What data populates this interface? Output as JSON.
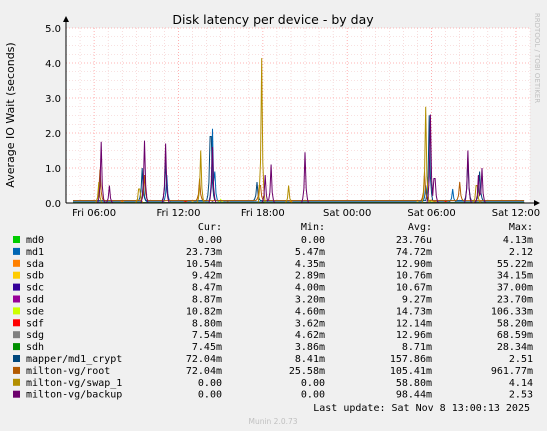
{
  "chart_data": {
    "type": "line",
    "title": "Disk latency per device - by day",
    "ylabel": "Average IO Wait (seconds)",
    "watermark": "RRDTOOL / TOBI OETIKER",
    "footer": "Munin 2.0.73",
    "last_update": "Last update: Sat Nov  8 13:00:13 2025",
    "ylim": [
      0,
      5
    ],
    "yticks": [
      {
        "value": 0,
        "label": "0.0"
      },
      {
        "value": 1,
        "label": "1.0"
      },
      {
        "value": 2,
        "label": "2.0"
      },
      {
        "value": 3,
        "label": "3.0"
      },
      {
        "value": 4,
        "label": "4.0"
      },
      {
        "value": 5,
        "label": "5.0"
      }
    ],
    "xlim": [
      "Fri 04:00",
      "Sat 13:00"
    ],
    "xticks": [
      {
        "hour": 6,
        "label": "Fri 06:00"
      },
      {
        "hour": 12,
        "label": "Fri 12:00"
      },
      {
        "hour": 18,
        "label": "Fri 18:00"
      },
      {
        "hour": 24,
        "label": "Sat 00:00"
      },
      {
        "hour": 30,
        "label": "Sat 06:00"
      },
      {
        "hour": 36,
        "label": "Sat 12:00"
      }
    ],
    "grid": true,
    "legend_headers": [
      "Cur:",
      "Min:",
      "Avg:",
      "Max:"
    ],
    "series": [
      {
        "name": "md0",
        "color": "#00cc00",
        "cur": "0.00",
        "min": "0.00",
        "avg": "23.76u",
        "max": "4.13m",
        "baseline": 0.001,
        "spikes": []
      },
      {
        "name": "md1",
        "color": "#0066b3",
        "cur": "23.73m",
        "min": "5.47m",
        "avg": "74.72m",
        "max": "2.12",
        "baseline": 0.03,
        "spikes": [
          [
            9.5,
            0.6
          ],
          [
            11.2,
            0.8
          ],
          [
            14.4,
            2.12
          ],
          [
            14.6,
            0.9
          ],
          [
            29.6,
            0.5
          ],
          [
            31.5,
            0.4
          ]
        ]
      },
      {
        "name": "sda",
        "color": "#ff8000",
        "cur": "10.54m",
        "min": "4.35m",
        "avg": "12.90m",
        "max": "55.22m",
        "baseline": 0.012,
        "spikes": [
          [
            8.0,
            0.05
          ],
          [
            20.0,
            0.055
          ],
          [
            30.2,
            0.05
          ]
        ]
      },
      {
        "name": "sdb",
        "color": "#ffcc00",
        "cur": "9.42m",
        "min": "2.89m",
        "avg": "10.76m",
        "max": "34.15m",
        "baseline": 0.011,
        "spikes": [
          [
            13.0,
            0.034
          ],
          [
            29.0,
            0.03
          ]
        ]
      },
      {
        "name": "sdc",
        "color": "#330099",
        "cur": "8.47m",
        "min": "4.00m",
        "avg": "10.67m",
        "max": "37.00m",
        "baseline": 0.011,
        "spikes": [
          [
            14.4,
            0.037
          ],
          [
            33.0,
            0.03
          ]
        ]
      },
      {
        "name": "sdd",
        "color": "#990099",
        "cur": "8.87m",
        "min": "3.20m",
        "avg": "9.27m",
        "max": "23.70m",
        "baseline": 0.009,
        "spikes": [
          [
            11.0,
            0.024
          ]
        ]
      },
      {
        "name": "sde",
        "color": "#ccff00",
        "cur": "10.82m",
        "min": "4.60m",
        "avg": "14.73m",
        "max": "106.33m",
        "baseline": 0.014,
        "spikes": [
          [
            15.0,
            0.1
          ],
          [
            29.9,
            0.08
          ]
        ]
      },
      {
        "name": "sdf",
        "color": "#ff0000",
        "cur": "8.80m",
        "min": "3.62m",
        "avg": "12.14m",
        "max": "58.20m",
        "baseline": 0.012,
        "spikes": [
          [
            12.5,
            0.058
          ],
          [
            31.0,
            0.05
          ]
        ]
      },
      {
        "name": "sdg",
        "color": "#808080",
        "cur": "7.54m",
        "min": "4.62m",
        "avg": "12.96m",
        "max": "68.59m",
        "baseline": 0.013,
        "spikes": [
          [
            15.5,
            0.068
          ],
          [
            33.5,
            0.06
          ]
        ]
      },
      {
        "name": "sdh",
        "color": "#008f00",
        "cur": "7.45m",
        "min": "3.86m",
        "avg": "8.71m",
        "max": "28.34m",
        "baseline": 0.009,
        "spikes": [
          [
            18.0,
            0.028
          ]
        ]
      },
      {
        "name": "mapper/md1_crypt",
        "color": "#00487d",
        "cur": "72.04m",
        "min": "8.41m",
        "avg": "157.86m",
        "max": "2.51",
        "baseline": 0.07,
        "spikes": [
          [
            9.4,
            1.0
          ],
          [
            11.1,
            1.2
          ],
          [
            14.3,
            1.9
          ],
          [
            17.6,
            0.6
          ],
          [
            29.8,
            2.51
          ],
          [
            32.6,
            1.3
          ],
          [
            33.4,
            0.9
          ]
        ]
      },
      {
        "name": "milton-vg/root",
        "color": "#b35a00",
        "cur": "72.04m",
        "min": "25.58m",
        "avg": "105.41m",
        "max": "961.77m",
        "baseline": 0.07,
        "spikes": [
          [
            6.4,
            0.96
          ],
          [
            9.6,
            0.8
          ],
          [
            13.5,
            0.7
          ],
          [
            17.8,
            0.5
          ],
          [
            29.5,
            0.9
          ],
          [
            32.0,
            0.6
          ]
        ]
      },
      {
        "name": "milton-vg/swap_1",
        "color": "#b38f00",
        "cur": "0.00",
        "min": "0.00",
        "avg": "58.80m",
        "max": "4.14",
        "baseline": 0.0,
        "spikes": [
          [
            6.3,
            0.6
          ],
          [
            9.2,
            0.4
          ],
          [
            13.6,
            1.5
          ],
          [
            17.9,
            4.14
          ],
          [
            19.8,
            0.5
          ],
          [
            29.6,
            2.75
          ],
          [
            33.2,
            0.5
          ]
        ]
      },
      {
        "name": "milton-vg/backup",
        "color": "#6b006b",
        "cur": "0.00",
        "min": "0.00",
        "avg": "98.44m",
        "max": "2.53",
        "baseline": 0.0,
        "spikes": [
          [
            6.5,
            1.75
          ],
          [
            7.1,
            0.5
          ],
          [
            9.6,
            1.78
          ],
          [
            11.1,
            1.7
          ],
          [
            14.45,
            1.6
          ],
          [
            18.2,
            0.8
          ],
          [
            18.6,
            1.1
          ],
          [
            21.0,
            1.45
          ],
          [
            29.9,
            2.53
          ],
          [
            30.2,
            0.7
          ],
          [
            32.6,
            1.5
          ],
          [
            33.3,
            0.8
          ],
          [
            33.6,
            1.0
          ]
        ]
      }
    ]
  }
}
